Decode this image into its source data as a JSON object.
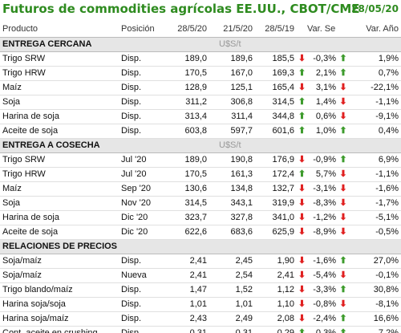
{
  "header": {
    "title": "Futuros de commodities agrícolas EE.UU., CBOT/CME",
    "date": "28/05/20"
  },
  "columns": {
    "product": "Producto",
    "position": "Posición",
    "d1": "28/5/20",
    "d2": "21/5/20",
    "d3": "28/5/19",
    "week": "Var. Sem.",
    "year": "Var. Año"
  },
  "colors": {
    "up": "#3d9b2c",
    "down": "#e02020",
    "title": "#2e8b1f",
    "section_bg": "#e6e6e6"
  },
  "sections": [
    {
      "title": "ENTREGA CERCANA",
      "unit": "U$S/t",
      "rows": [
        {
          "product": "Trigo SRW",
          "position": "Disp.",
          "d1": "189,0",
          "d2": "189,6",
          "d3": "185,5",
          "yr_dir": "down",
          "week": "-0,3%",
          "wk_dir": "up",
          "year": "1,9%"
        },
        {
          "product": "Trigo HRW",
          "position": "Disp.",
          "d1": "170,5",
          "d2": "167,0",
          "d3": "169,3",
          "yr_dir": "up",
          "week": "2,1%",
          "wk_dir": "up",
          "year": "0,7%"
        },
        {
          "product": "Maíz",
          "position": "Disp.",
          "d1": "128,9",
          "d2": "125,1",
          "d3": "165,4",
          "yr_dir": "down",
          "week": "3,1%",
          "wk_dir": "down",
          "year": "-22,1%"
        },
        {
          "product": "Soja",
          "position": "Disp.",
          "d1": "311,2",
          "d2": "306,8",
          "d3": "314,5",
          "yr_dir": "up",
          "week": "1,4%",
          "wk_dir": "down",
          "year": "-1,1%"
        },
        {
          "product": "Harina de soja",
          "position": "Disp.",
          "d1": "313,4",
          "d2": "311,4",
          "d3": "344,8",
          "yr_dir": "up",
          "week": "0,6%",
          "wk_dir": "down",
          "year": "-9,1%"
        },
        {
          "product": "Aceite de soja",
          "position": "Disp.",
          "d1": "603,8",
          "d2": "597,7",
          "d3": "601,6",
          "yr_dir": "up",
          "week": "1,0%",
          "wk_dir": "up",
          "year": "0,4%"
        }
      ]
    },
    {
      "title": "ENTREGA A COSECHA",
      "unit": "U$S/t",
      "rows": [
        {
          "product": "Trigo SRW",
          "position": "Jul '20",
          "d1": "189,0",
          "d2": "190,8",
          "d3": "176,9",
          "yr_dir": "down",
          "week": "-0,9%",
          "wk_dir": "up",
          "year": "6,9%"
        },
        {
          "product": "Trigo HRW",
          "position": "Jul '20",
          "d1": "170,5",
          "d2": "161,3",
          "d3": "172,4",
          "yr_dir": "up",
          "week": "5,7%",
          "wk_dir": "down",
          "year": "-1,1%"
        },
        {
          "product": "Maíz",
          "position": "Sep '20",
          "d1": "130,6",
          "d2": "134,8",
          "d3": "132,7",
          "yr_dir": "down",
          "week": "-3,1%",
          "wk_dir": "down",
          "year": "-1,6%"
        },
        {
          "product": "Soja",
          "position": "Nov '20",
          "d1": "314,5",
          "d2": "343,1",
          "d3": "319,9",
          "yr_dir": "down",
          "week": "-8,3%",
          "wk_dir": "down",
          "year": "-1,7%"
        },
        {
          "product": "Harina de soja",
          "position": "Dic '20",
          "d1": "323,7",
          "d2": "327,8",
          "d3": "341,0",
          "yr_dir": "down",
          "week": "-1,2%",
          "wk_dir": "down",
          "year": "-5,1%"
        },
        {
          "product": "Aceite de soja",
          "position": "Dic '20",
          "d1": "622,6",
          "d2": "683,6",
          "d3": "625,9",
          "yr_dir": "down",
          "week": "-8,9%",
          "wk_dir": "down",
          "year": "-0,5%"
        }
      ]
    },
    {
      "title": "RELACIONES DE PRECIOS",
      "unit": "",
      "rows": [
        {
          "product": "Soja/maíz",
          "position": "Disp.",
          "d1": "2,41",
          "d2": "2,45",
          "d3": "1,90",
          "yr_dir": "down",
          "week": "-1,6%",
          "wk_dir": "up",
          "year": "27,0%"
        },
        {
          "product": "Soja/maíz",
          "position": "Nueva",
          "d1": "2,41",
          "d2": "2,54",
          "d3": "2,41",
          "yr_dir": "down",
          "week": "-5,4%",
          "wk_dir": "down",
          "year": "-0,1%"
        },
        {
          "product": "Trigo blando/maíz",
          "position": "Disp.",
          "d1": "1,47",
          "d2": "1,52",
          "d3": "1,12",
          "yr_dir": "down",
          "week": "-3,3%",
          "wk_dir": "up",
          "year": "30,8%"
        },
        {
          "product": "Harina soja/soja",
          "position": "Disp.",
          "d1": "1,01",
          "d2": "1,01",
          "d3": "1,10",
          "yr_dir": "down",
          "week": "-0,8%",
          "wk_dir": "down",
          "year": "-8,1%"
        },
        {
          "product": "Harina soja/maíz",
          "position": "Disp.",
          "d1": "2,43",
          "d2": "2,49",
          "d3": "2,08",
          "yr_dir": "down",
          "week": "-2,4%",
          "wk_dir": "up",
          "year": "16,6%"
        },
        {
          "product": "Cont. aceite en crushing",
          "position": "Disp.",
          "d1": "0,31",
          "d2": "0,31",
          "d3": "0,29",
          "yr_dir": "up",
          "week": "0,3%",
          "wk_dir": "up",
          "year": "7,2%"
        }
      ]
    }
  ]
}
